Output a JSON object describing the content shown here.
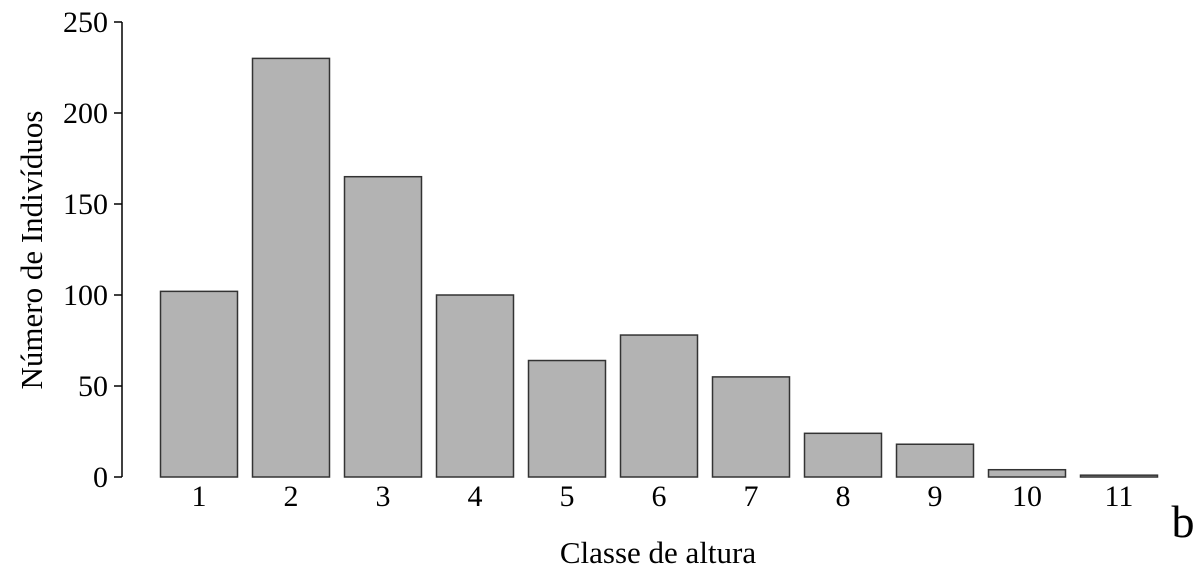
{
  "chart_data": {
    "type": "bar",
    "categories": [
      "1",
      "2",
      "3",
      "4",
      "5",
      "6",
      "7",
      "8",
      "9",
      "10",
      "11"
    ],
    "values": [
      102,
      230,
      165,
      100,
      64,
      78,
      55,
      24,
      18,
      4,
      1
    ],
    "xlabel": "Classe de altura",
    "ylabel": "Número de Indivíduos",
    "ylim": [
      0,
      250
    ],
    "yticks": [
      0,
      50,
      100,
      150,
      200,
      250
    ],
    "panel_label": "b",
    "grid": false,
    "bar_color": "#b3b3b3",
    "bar_edge_color": "#333333"
  }
}
